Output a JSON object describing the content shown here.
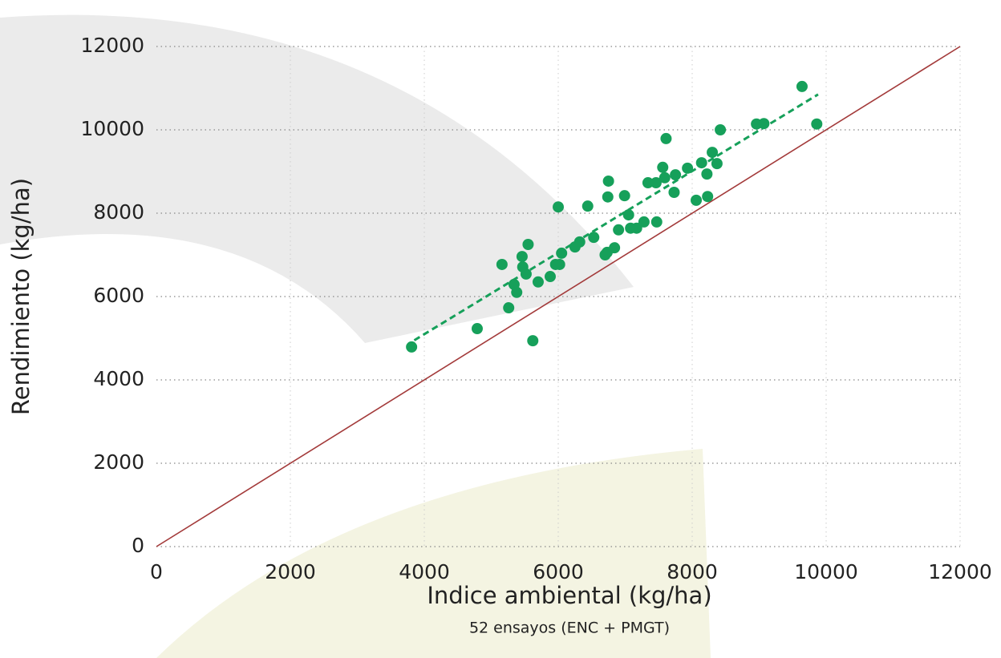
{
  "chart_data": {
    "type": "scatter",
    "xlabel": "Indice ambiental (kg/ha)",
    "ylabel": "Rendimiento (kg/ha)",
    "note": "52 ensayos (ENC + PMGT)",
    "xlim": [
      0,
      12000
    ],
    "ylim": [
      0,
      12000
    ],
    "xticks": [
      0,
      2000,
      4000,
      6000,
      8000,
      10000,
      12000
    ],
    "yticks": [
      0,
      2000,
      4000,
      6000,
      8000,
      10000,
      12000
    ],
    "grid": true,
    "series": [
      {
        "color": "#16a05a",
        "x": [
          3810,
          4790,
          5160,
          5260,
          5340,
          5380,
          5460,
          5470,
          5520,
          5550,
          5620,
          5700,
          5880,
          5960,
          6000,
          6020,
          6050,
          6250,
          6320,
          6440,
          6530,
          6700,
          6730,
          6740,
          6750,
          6840,
          6900,
          6990,
          7050,
          7080,
          7170,
          7280,
          7340,
          7460,
          7470,
          7560,
          7590,
          7610,
          7730,
          7750,
          7930,
          8060,
          8140,
          8230,
          8220,
          8300,
          8370,
          8420,
          8960,
          9070,
          9640,
          9860
        ],
        "y": [
          4790,
          5230,
          6770,
          5730,
          6290,
          6100,
          6960,
          6710,
          6540,
          7250,
          4940,
          6350,
          6480,
          6770,
          8150,
          6770,
          7040,
          7190,
          7310,
          8170,
          7420,
          7000,
          7060,
          8390,
          8770,
          7170,
          7600,
          8420,
          7960,
          7640,
          7640,
          7790,
          8730,
          8730,
          7790,
          9100,
          8850,
          9790,
          8500,
          8920,
          9080,
          8310,
          9210,
          8400,
          8940,
          9460,
          9190,
          10000,
          10140,
          10150,
          11040,
          10140
        ]
      }
    ],
    "trend_line": {
      "color": "#16a05a",
      "x": [
        3850,
        9880
      ],
      "y": [
        4950,
        10850
      ]
    },
    "identity_line": {
      "color": "#a33a3a",
      "x": [
        0,
        12000
      ],
      "y": [
        0,
        12000
      ]
    }
  }
}
